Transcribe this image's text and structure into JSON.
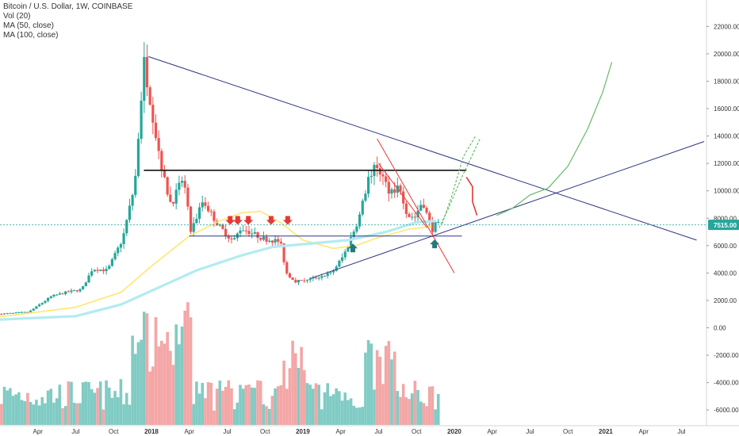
{
  "legend": {
    "title": "Bitcoin / U.S. Dollar, 1W, COINBASE",
    "vol": "Vol (20)",
    "ma50": "MA (50, close)",
    "ma100": "MA (100, close)"
  },
  "price_badge": "7515.00",
  "colors": {
    "up": "#26a69a",
    "down": "#ef5350",
    "vol_up": "#80cbc4",
    "vol_down": "#f4a6a6",
    "ma50": "#ffe770",
    "ma100": "#b2ebf2",
    "trend": "#2e3580",
    "resistance": "#111111",
    "projection_green": "#66bb6a",
    "projection_red": "#e53935",
    "badge": "#26a69a"
  },
  "chart_data": {
    "type": "candlestick",
    "title": "Bitcoin / U.S. Dollar, 1W, COINBASE",
    "price_axis_ticks": [
      "22000.00",
      "20000.00",
      "18000.00",
      "16000.00",
      "14000.00",
      "12000.00",
      "10000.00",
      "8000.00",
      "7515.00",
      "6000.00",
      "4000.00",
      "2000.00",
      "0.00",
      "-2000.00",
      "-4000.00",
      "-6000.00"
    ],
    "price_axis_values": [
      22000,
      20000,
      18000,
      16000,
      14000,
      12000,
      10000,
      8000,
      6000,
      4000,
      2000,
      0,
      -2000,
      -4000,
      -6000
    ],
    "time_axis_ticks": [
      "Apr",
      "Jul",
      "Oct",
      "2018",
      "Apr",
      "Jul",
      "Oct",
      "2019",
      "Apr",
      "Jul",
      "Oct",
      "2020",
      "Apr",
      "Jul",
      "Oct",
      "2021",
      "Apr",
      "Jul"
    ],
    "time_axis_positions_year": [
      2017.25,
      2017.5,
      2017.75,
      2018.0,
      2018.25,
      2018.5,
      2018.75,
      2019.0,
      2019.25,
      2019.5,
      2019.75,
      2020.0,
      2020.25,
      2020.5,
      2020.75,
      2021.0,
      2021.25,
      2021.5
    ],
    "current_price": 7515,
    "price_anchors": [
      [
        2017.0,
        1000
      ],
      [
        2017.2,
        1150
      ],
      [
        2017.35,
        2300
      ],
      [
        2017.45,
        2600
      ],
      [
        2017.55,
        2800
      ],
      [
        2017.62,
        4300
      ],
      [
        2017.72,
        4200
      ],
      [
        2017.82,
        6500
      ],
      [
        2017.9,
        10500
      ],
      [
        2017.96,
        19500
      ],
      [
        2018.04,
        14000
      ],
      [
        2018.1,
        10500
      ],
      [
        2018.14,
        9000
      ],
      [
        2018.22,
        11000
      ],
      [
        2018.27,
        7000
      ],
      [
        2018.35,
        9300
      ],
      [
        2018.45,
        7500
      ],
      [
        2018.55,
        6300
      ],
      [
        2018.6,
        7300
      ],
      [
        2018.75,
        6500
      ],
      [
        2018.86,
        6300
      ],
      [
        2018.9,
        4000
      ],
      [
        2018.96,
        3400
      ],
      [
        2019.08,
        3600
      ],
      [
        2019.2,
        4000
      ],
      [
        2019.28,
        5300
      ],
      [
        2019.38,
        8000
      ],
      [
        2019.45,
        11200
      ],
      [
        2019.5,
        11800
      ],
      [
        2019.58,
        10000
      ],
      [
        2019.65,
        10300
      ],
      [
        2019.7,
        8200
      ],
      [
        2019.75,
        8100
      ],
      [
        2019.8,
        9300
      ],
      [
        2019.86,
        7100
      ],
      [
        2019.88,
        7515
      ]
    ],
    "moving_averages": [
      {
        "name": "MA (50, close)",
        "points": [
          [
            2017.0,
            800
          ],
          [
            2017.5,
            1500
          ],
          [
            2017.8,
            2600
          ],
          [
            2018.0,
            4500
          ],
          [
            2018.25,
            6700
          ],
          [
            2018.45,
            7800
          ],
          [
            2018.6,
            8400
          ],
          [
            2018.72,
            8500
          ],
          [
            2018.85,
            7700
          ],
          [
            2019.0,
            6400
          ],
          [
            2019.2,
            5800
          ],
          [
            2019.35,
            6000
          ],
          [
            2019.5,
            6600
          ],
          [
            2019.7,
            7200
          ],
          [
            2019.85,
            7400
          ]
        ]
      },
      {
        "name": "MA (100, close)",
        "points": [
          [
            2017.0,
            600
          ],
          [
            2017.5,
            850
          ],
          [
            2017.8,
            1700
          ],
          [
            2018.0,
            2700
          ],
          [
            2018.3,
            4200
          ],
          [
            2018.6,
            5300
          ],
          [
            2018.8,
            5900
          ],
          [
            2019.0,
            6100
          ],
          [
            2019.3,
            6400
          ],
          [
            2019.55,
            7000
          ],
          [
            2019.75,
            7700
          ],
          [
            2019.88,
            7800
          ]
        ]
      }
    ],
    "volume": {
      "name": "Vol (20)",
      "axis_ticks": [
        0,
        -2000,
        -4000,
        -6000
      ]
    },
    "drawings": [
      {
        "kind": "trendline",
        "name": "descending-resistance",
        "from": [
          2017.98,
          19800
        ],
        "to": [
          2021.6,
          6400
        ]
      },
      {
        "kind": "trendline",
        "name": "ascending-support",
        "from": [
          2019.05,
          3600
        ],
        "to": [
          2021.65,
          13600
        ]
      },
      {
        "kind": "horizontal",
        "name": "resistance-11500",
        "from": [
          2017.95,
          11500
        ],
        "to": [
          2020.08,
          11500
        ]
      },
      {
        "kind": "horizontal",
        "name": "support-6700",
        "from": [
          2018.25,
          6700
        ],
        "to": [
          2020.05,
          6700
        ]
      },
      {
        "kind": "trendline",
        "name": "falling-channel-top",
        "from": [
          2019.49,
          13800
        ],
        "to": [
          2020.0,
          4000
        ]
      },
      {
        "kind": "trendline",
        "name": "falling-channel-bottom",
        "from": [
          2019.5,
          12000
        ],
        "to": [
          2019.82,
          7300
        ]
      },
      {
        "kind": "projection",
        "name": "green-projection-1",
        "points": [
          [
            2019.92,
            7600
          ],
          [
            2019.98,
            9500
          ],
          [
            2020.06,
            12500
          ],
          [
            2020.14,
            14000
          ]
        ]
      },
      {
        "kind": "projection",
        "name": "green-projection-2",
        "points": [
          [
            2019.9,
            7300
          ],
          [
            2019.96,
            8700
          ],
          [
            2020.05,
            11000
          ],
          [
            2020.17,
            13800
          ]
        ]
      },
      {
        "kind": "projection",
        "name": "green-projection-3",
        "points": [
          [
            2020.28,
            8200
          ],
          [
            2020.38,
            8700
          ],
          [
            2020.5,
            9700
          ],
          [
            2020.62,
            10200
          ],
          [
            2020.75,
            11800
          ],
          [
            2020.88,
            14500
          ],
          [
            2020.98,
            17200
          ],
          [
            2021.04,
            19400
          ]
        ]
      },
      {
        "kind": "projection",
        "name": "red-projection",
        "points": [
          [
            2020.08,
            11000
          ],
          [
            2020.12,
            10300
          ],
          [
            2020.12,
            9200
          ],
          [
            2020.15,
            8200
          ]
        ]
      }
    ],
    "markers": [
      {
        "type": "down-arrow",
        "x": 2018.52,
        "y": 7700
      },
      {
        "type": "down-arrow",
        "x": 2018.57,
        "y": 7700
      },
      {
        "type": "down-arrow",
        "x": 2018.64,
        "y": 7700
      },
      {
        "type": "down-arrow",
        "x": 2018.79,
        "y": 7700
      },
      {
        "type": "down-arrow",
        "x": 2018.9,
        "y": 7700
      },
      {
        "type": "up-arrow",
        "x": 2019.33,
        "y": 5800
      },
      {
        "type": "up-arrow",
        "x": 2019.87,
        "y": 6100
      }
    ]
  }
}
